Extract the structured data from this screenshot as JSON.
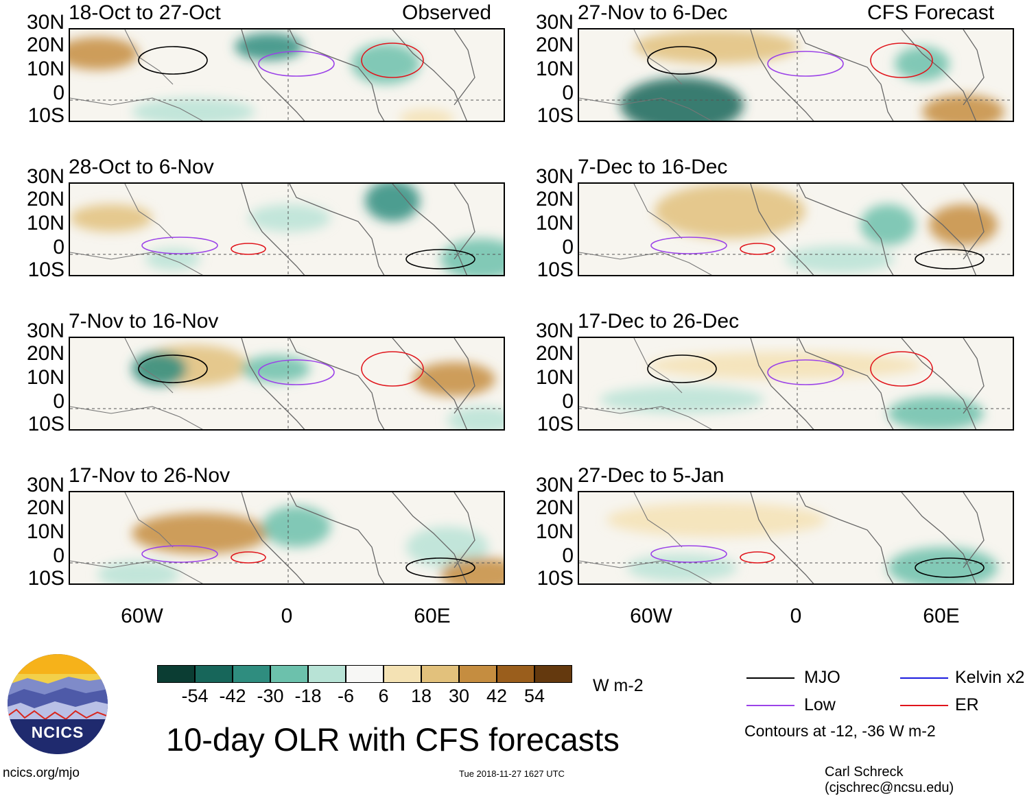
{
  "columns": [
    {
      "tag": "Observed",
      "panels": [
        {
          "period": "18-Oct to 27-Oct"
        },
        {
          "period": "28-Oct to 6-Nov"
        },
        {
          "period": "7-Nov to 16-Nov"
        },
        {
          "period": "17-Nov to 26-Nov"
        }
      ]
    },
    {
      "tag": "CFS Forecast",
      "panels": [
        {
          "period": "27-Nov to 6-Dec"
        },
        {
          "period": "7-Dec to 16-Dec"
        },
        {
          "period": "17-Dec to 26-Dec"
        },
        {
          "period": "27-Dec to 5-Jan"
        }
      ]
    }
  ],
  "lat_labels": [
    "30N",
    "20N",
    "10N",
    "0",
    "10S"
  ],
  "lon_labels": [
    "60W",
    "0",
    "60E"
  ],
  "colorbar": {
    "ticks": [
      "-54",
      "-42",
      "-30",
      "-18",
      "-6",
      "6",
      "18",
      "30",
      "42",
      "54"
    ],
    "units": "W m-2",
    "colors": [
      "#0b3d33",
      "#17665a",
      "#2f8d7f",
      "#6cc1ac",
      "#b8e3d6",
      "#f7f7f5",
      "#f4e2b4",
      "#e2c17c",
      "#c58d40",
      "#9a5e1c",
      "#64390e"
    ]
  },
  "legend": {
    "items": [
      {
        "label": "MJO",
        "color": "#000000"
      },
      {
        "label": "Kelvin x2",
        "color": "#1a1adf"
      },
      {
        "label": "Low",
        "color": "#9b42e8"
      },
      {
        "label": "ER",
        "color": "#e0141b"
      }
    ],
    "note": "Contours at -12, -36 W m-2"
  },
  "logo_text": "NCICS",
  "main_title": "10-day OLR with CFS forecasts",
  "footer": {
    "url": "ncics.org/mjo",
    "timestamp": "Tue 2018-11-27 1627 UTC",
    "credit": "Carl Schreck (cjschrec@ncsu.edu)"
  }
}
